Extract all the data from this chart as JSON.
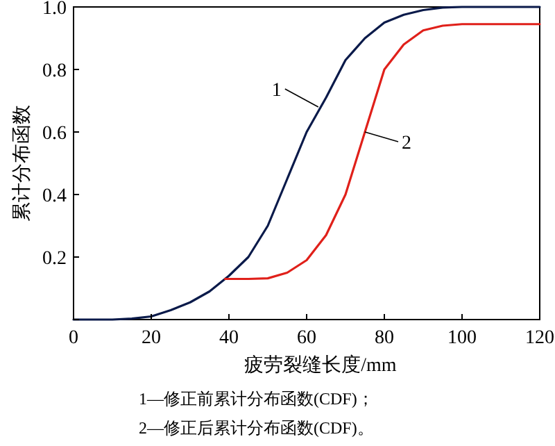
{
  "chart_data": {
    "type": "line",
    "xlabel": "疲劳裂缝长度/mm",
    "ylabel": "累计分布函数",
    "xlim": [
      0,
      120
    ],
    "ylim": [
      0,
      1.0
    ],
    "xticks": [
      0,
      20,
      40,
      60,
      80,
      100,
      120
    ],
    "yticks": [
      {
        "value": 0,
        "label": null
      },
      0.2,
      0.4,
      0.6,
      0.8,
      {
        "value": 1.0,
        "label": "1.0"
      }
    ],
    "grid": false,
    "marker": "none",
    "line_style": "solid",
    "series": [
      {
        "color": "#0a1a4a",
        "x": [
          0,
          10,
          15,
          20,
          25,
          30,
          35,
          40,
          45,
          50,
          55,
          60,
          65,
          70,
          75,
          80,
          85,
          90,
          95,
          100,
          120
        ],
        "values": [
          0,
          0,
          0.003,
          0.01,
          0.03,
          0.055,
          0.09,
          0.14,
          0.2,
          0.3,
          0.45,
          0.6,
          0.71,
          0.83,
          0.9,
          0.95,
          0.975,
          0.99,
          0.998,
          1,
          1
        ]
      },
      {
        "color": "#e0201a",
        "x": [
          39,
          45,
          50,
          55,
          60,
          65,
          70,
          75,
          80,
          85,
          90,
          95,
          100,
          120
        ],
        "values": [
          0.13,
          0.13,
          0.132,
          0.15,
          0.19,
          0.27,
          0.4,
          0.6,
          0.8,
          0.88,
          0.925,
          0.94,
          0.945,
          0.945
        ]
      }
    ],
    "annotations": [
      {
        "text": "1",
        "x": 63,
        "y": 0.68
      },
      {
        "text": "2",
        "x": 75,
        "y": 0.6
      },
      "1—修正前累计分布函数(CDF)；",
      "2—修正后累计分布函数(CDF)。"
    ]
  }
}
